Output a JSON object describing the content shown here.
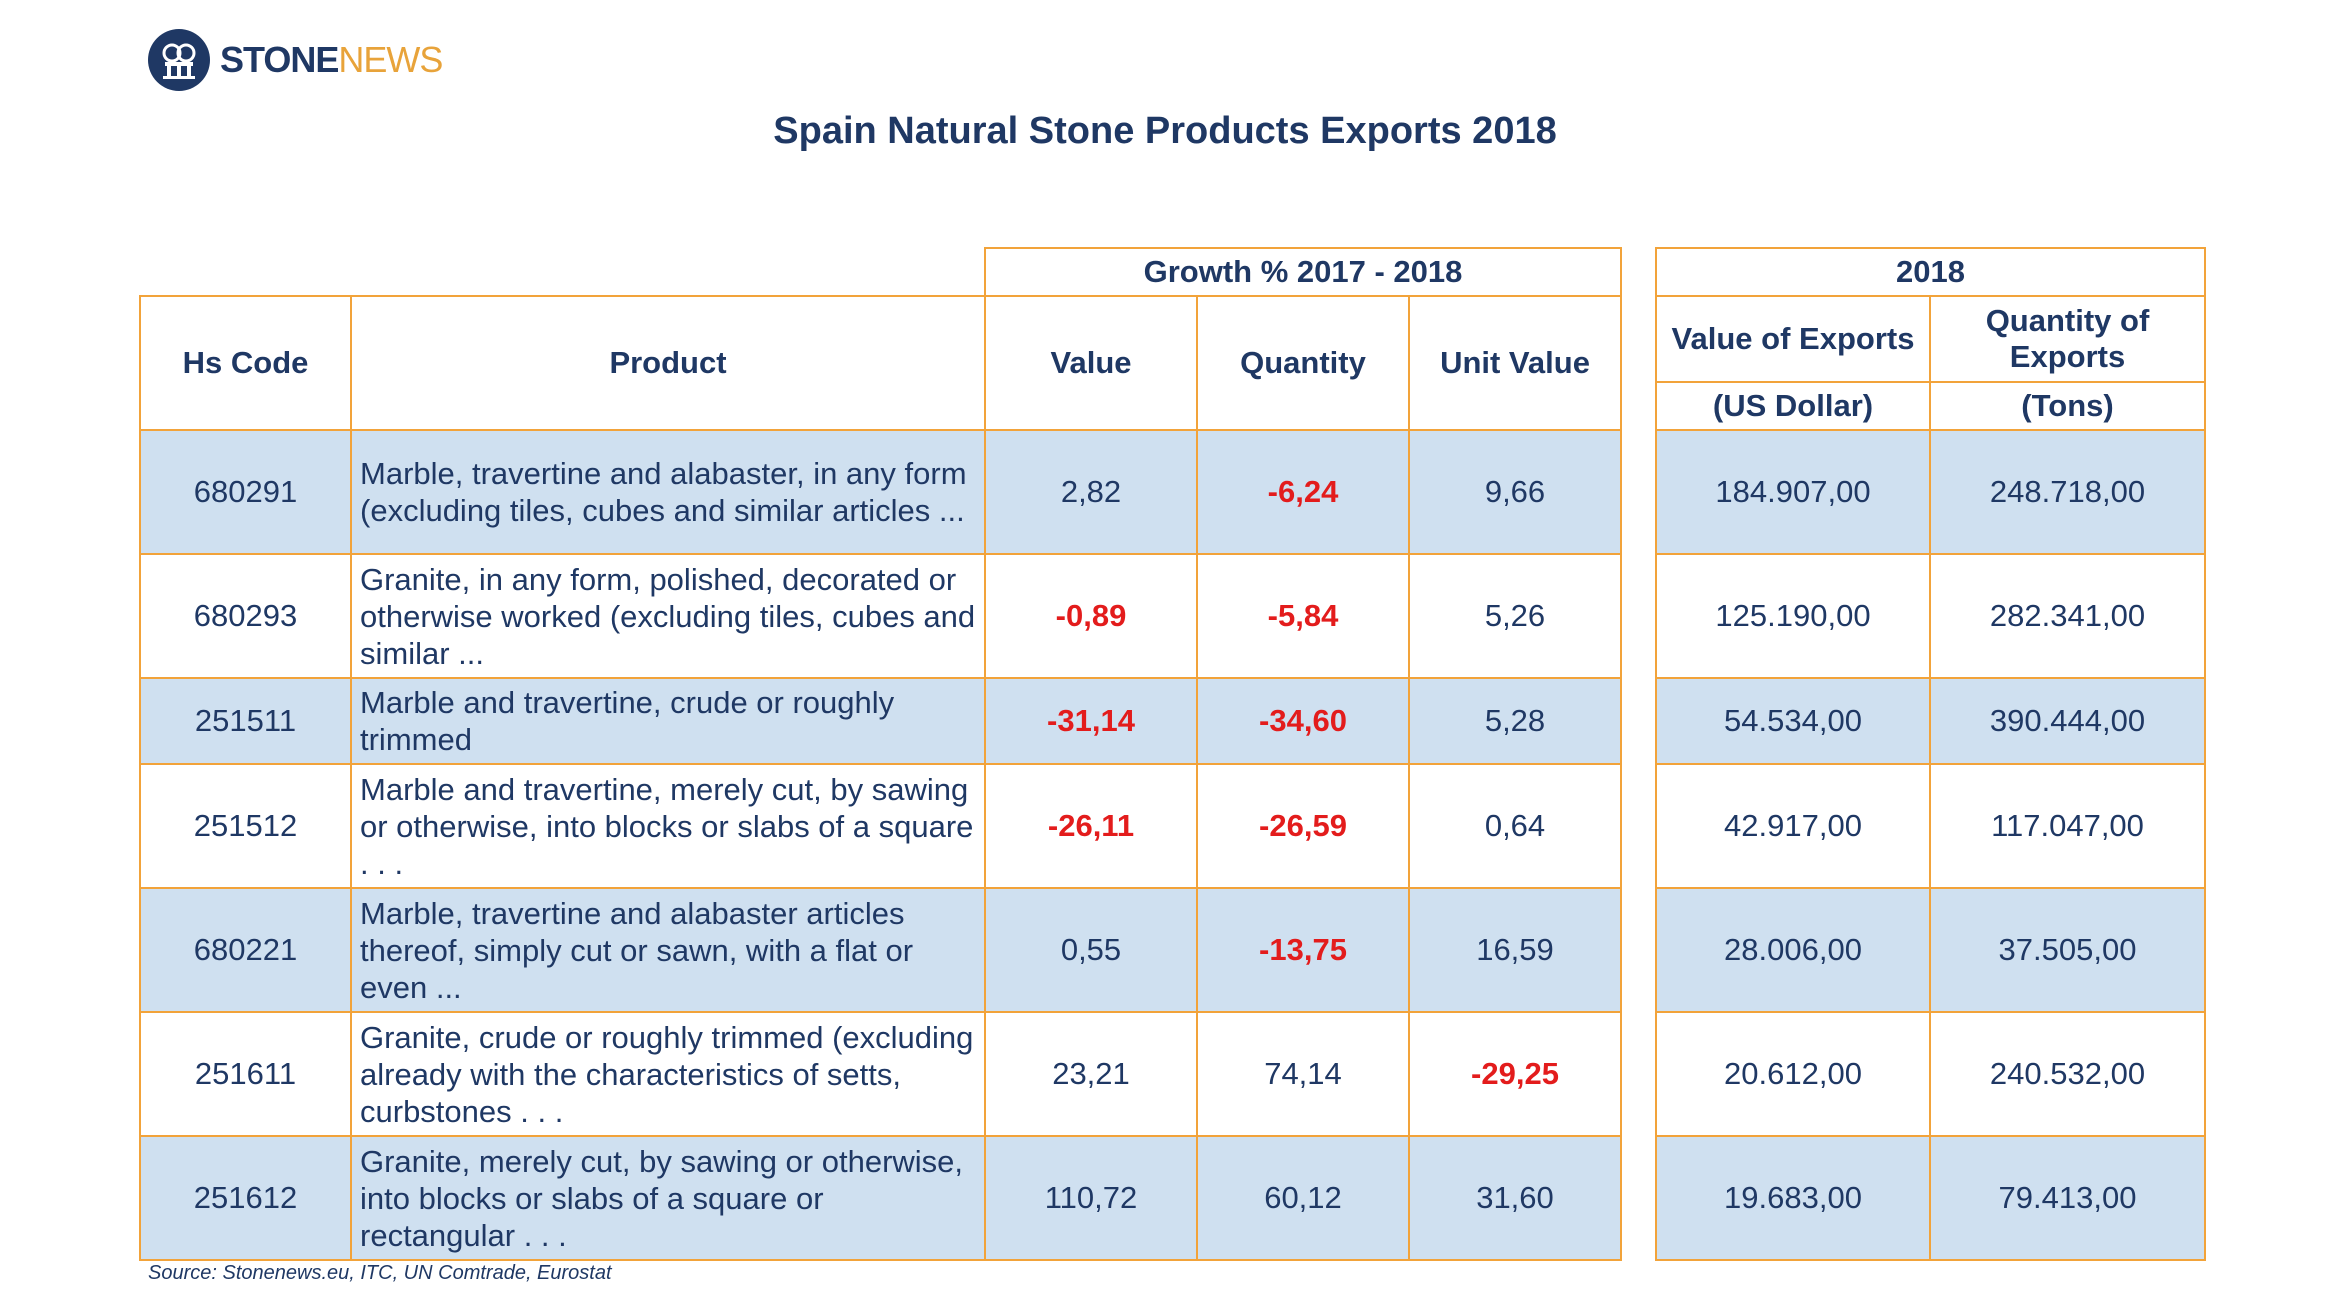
{
  "logo": {
    "brand_a": "STONE",
    "brand_b": "NEWS",
    "mark_icon": "stonenews-logo-icon"
  },
  "title": "Spain Natural Stone Products Exports 2018",
  "headers": {
    "growth_group": "Growth %  2017 - 2018",
    "hs_code": "Hs Code",
    "product": "Product",
    "value": "Value",
    "quantity": "Quantity",
    "unit_value": "Unit Value",
    "year_group": "2018",
    "value_exports": "Value of Exports",
    "quantity_exports": "Quantity of Exports",
    "value_unit": "(US Dollar)",
    "quantity_unit": "(Tons)"
  },
  "source": "Source: Stonenews.eu, ITC, UN Comtrade, Eurostat",
  "colors": {
    "negative": "#e31c1c",
    "border": "#f2a33a",
    "row_shade": "#cfe0f0",
    "text": "#1f3864"
  },
  "chart_data": {
    "type": "table",
    "title": "Spain Natural Stone Products Exports 2018",
    "columns": [
      "Hs Code",
      "Product",
      "Value",
      "Quantity",
      "Unit Value",
      "Value of Exports (US Dollar)",
      "Quantity of Exports (Tons)"
    ],
    "rows": [
      {
        "hs": "680291",
        "product": "Marble, travertine and alabaster, in any form (excluding tiles, cubes and similar articles ...",
        "value": "2,82",
        "quantity": "-6,24",
        "unit_value": "9,66",
        "value_exports": "184.907,00",
        "quantity_exports": "248.718,00"
      },
      {
        "hs": "680293",
        "product": "Granite, in any form, polished, decorated or otherwise worked (excluding tiles, cubes and similar ...",
        "value": "-0,89",
        "quantity": "-5,84",
        "unit_value": "5,26",
        "value_exports": "125.190,00",
        "quantity_exports": "282.341,00"
      },
      {
        "hs": "251511",
        "product": "Marble and travertine, crude or roughly trimmed",
        "value": "-31,14",
        "quantity": "-34,60",
        "unit_value": "5,28",
        "value_exports": "54.534,00",
        "quantity_exports": "390.444,00"
      },
      {
        "hs": "251512",
        "product": "Marble and travertine, merely cut, by sawing or otherwise, into blocks or slabs of a square . . .",
        "value": "-26,11",
        "quantity": "-26,59",
        "unit_value": "0,64",
        "value_exports": "42.917,00",
        "quantity_exports": "117.047,00"
      },
      {
        "hs": "680221",
        "product": "Marble, travertine and alabaster articles thereof, simply cut or sawn, with a flat or even ...",
        "value": "0,55",
        "quantity": "-13,75",
        "unit_value": "16,59",
        "value_exports": "28.006,00",
        "quantity_exports": "37.505,00"
      },
      {
        "hs": "251611",
        "product": "Granite, crude or roughly trimmed (excluding already with the characteristics of setts, curbstones . . .",
        "value": "23,21",
        "quantity": "74,14",
        "unit_value": "-29,25",
        "value_exports": "20.612,00",
        "quantity_exports": "240.532,00"
      },
      {
        "hs": "251612",
        "product": "Granite, merely cut, by sawing or otherwise, into blocks or slabs of a square or rectangular . . .",
        "value": "110,72",
        "quantity": "60,12",
        "unit_value": "31,60",
        "value_exports": "19.683,00",
        "quantity_exports": "79.413,00"
      }
    ]
  }
}
